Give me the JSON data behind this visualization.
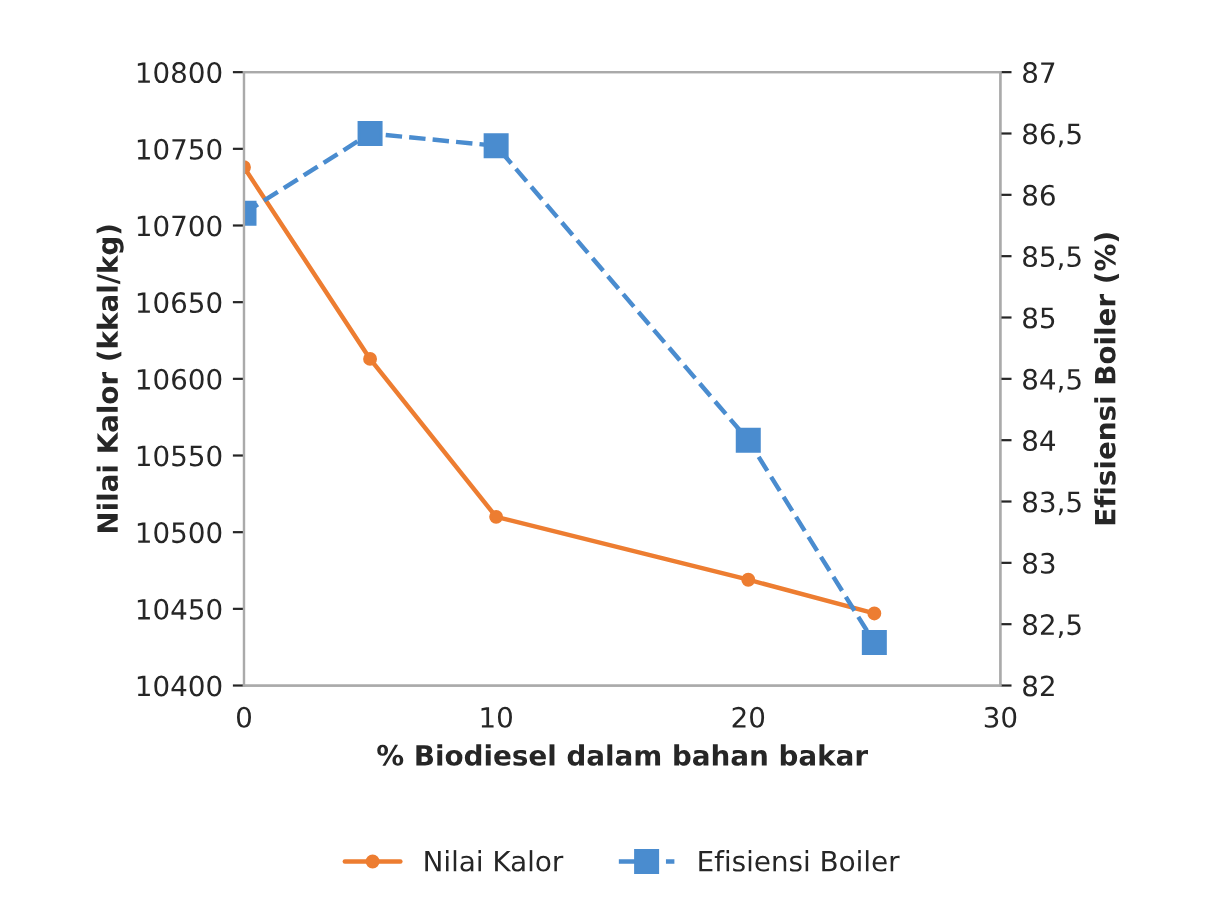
{
  "chart_data": {
    "type": "line",
    "xlabel": "% Biodiesel dalam bahan bakar",
    "ylabel": "Nilai Kalor (kkal/kg)",
    "y2label": "Efisiensi Boiler (%)",
    "x": [
      0,
      5,
      10,
      20,
      25
    ],
    "series": [
      {
        "name": "Nilai Kalor",
        "color": "#ed7d31",
        "values": [
          10738,
          10613,
          10510,
          10469,
          10447
        ],
        "marker": "circle",
        "line_style": "solid"
      },
      {
        "name": "Efisiensi Boiler",
        "color": "#4a8ccf",
        "values": [
          85.85,
          86.5,
          86.4,
          84.0,
          82.35
        ],
        "marker": "square",
        "line_style": "dashed",
        "axis": "y2"
      }
    ],
    "xlim": [
      0,
      30
    ],
    "xticks": [
      0,
      10,
      20,
      30
    ],
    "ylim": [
      10400,
      10800
    ],
    "yticks": [
      10400,
      10450,
      10500,
      10550,
      10600,
      10650,
      10700,
      10750,
      10800
    ],
    "y2lim": [
      82,
      87
    ],
    "y2ticks": [
      82,
      {
        "value": 82.5,
        "label": "82,5"
      },
      83,
      {
        "value": 83.5,
        "label": "83,5"
      },
      84,
      {
        "value": 84.5,
        "label": "84,5"
      },
      85,
      {
        "value": 85.5,
        "label": "85,5"
      },
      86,
      {
        "value": 86.5,
        "label": "86,5"
      },
      87
    ],
    "grid": false,
    "legend": "bottom"
  }
}
